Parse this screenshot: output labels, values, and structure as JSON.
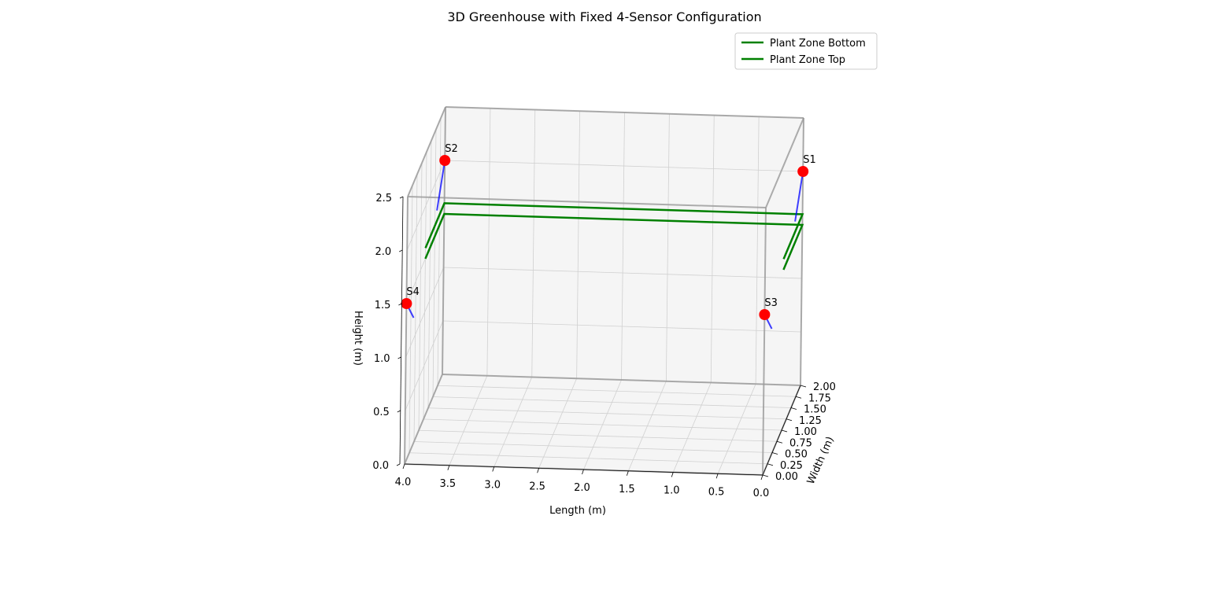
{
  "chart_data": {
    "type": "3d-line-scatter",
    "title": "3D Greenhouse with Fixed 4-Sensor Configuration",
    "xlabel": "Length (m)",
    "ylabel": "Width (m)",
    "zlabel": "Height (m)",
    "xlim": [
      0,
      4
    ],
    "ylim": [
      0,
      2
    ],
    "zlim": [
      0,
      2.5
    ],
    "x_ticks": [
      "0.0",
      "0.5",
      "1.0",
      "1.5",
      "2.0",
      "2.5",
      "3.0",
      "3.5",
      "4.0"
    ],
    "y_ticks": [
      "0.00",
      "0.25",
      "0.50",
      "0.75",
      "1.00",
      "1.25",
      "1.50",
      "1.75",
      "2.00"
    ],
    "z_ticks": [
      "0.0",
      "0.5",
      "1.0",
      "1.5",
      "2.0",
      "2.5"
    ],
    "grid": true,
    "legend_position": "top-right",
    "legend": [
      {
        "label": "Plant Zone Bottom",
        "color": "#008000"
      },
      {
        "label": "Plant Zone Top",
        "color": "#008000"
      }
    ],
    "greenhouse_frame": {
      "length": 4,
      "width": 2,
      "height": 2.5,
      "color": "#999999"
    },
    "plant_zone": {
      "x_range": [
        0,
        4
      ],
      "y": 1.0,
      "bottom_height": 1.5,
      "top_height": 1.6,
      "color": "#008000"
    },
    "sensors": [
      {
        "label": "S1",
        "x": 0.0,
        "y": 2.0,
        "z": 2.0,
        "direction": [
          0.0,
          -0.4,
          -0.3
        ]
      },
      {
        "label": "S2",
        "x": 4.0,
        "y": 2.0,
        "z": 2.0,
        "direction": [
          0.0,
          -0.4,
          -0.3
        ]
      },
      {
        "label": "S3",
        "x": 0.0,
        "y": 0.0,
        "z": 1.5,
        "direction": [
          0.0,
          0.4,
          -0.3
        ]
      },
      {
        "label": "S4",
        "x": 4.0,
        "y": 0.0,
        "z": 1.5,
        "direction": [
          0.0,
          0.4,
          -0.3
        ]
      }
    ],
    "sensor_color": "#ff0000",
    "direction_color": "#0000ff"
  }
}
